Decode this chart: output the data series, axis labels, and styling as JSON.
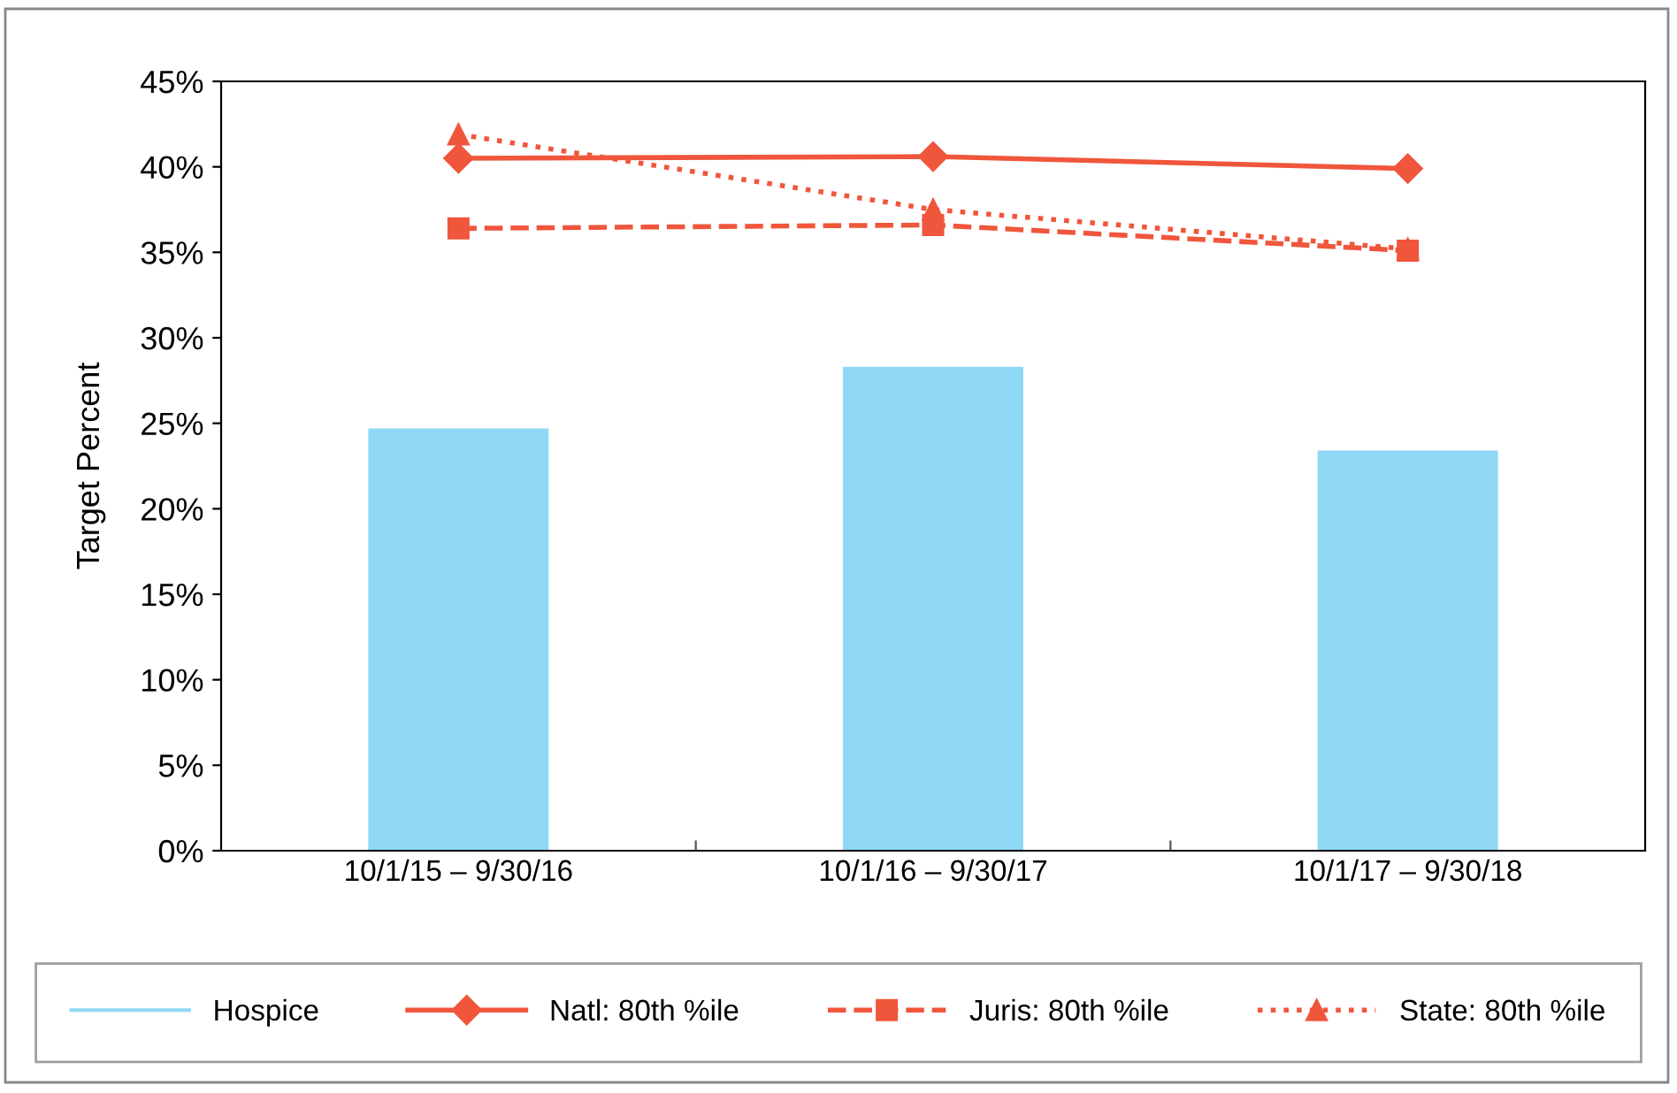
{
  "chart_data": {
    "type": "bar",
    "ylabel": "Target Percent",
    "categories": [
      "10/1/15 – 9/30/16",
      "10/1/16 – 9/30/17",
      "10/1/17 – 9/30/18"
    ],
    "series": [
      {
        "name": "Hospice",
        "color": "#8fd8f5",
        "values": [
          24.7,
          28.3,
          23.4
        ]
      },
      {
        "name": "Natl: 80th %ile",
        "type": "line",
        "color": "#f0563c",
        "marker": "diamond",
        "line_style": "solid",
        "values": [
          40.5,
          40.6,
          39.9
        ]
      },
      {
        "name": "Juris: 80th %ile",
        "type": "line",
        "color": "#f0563c",
        "marker": "square",
        "line_style": "dashed",
        "values": [
          36.4,
          36.6,
          35.1
        ]
      },
      {
        "name": "State: 80th %ile",
        "type": "line",
        "color": "#f0563c",
        "marker": "triangle",
        "line_style": "dotted",
        "values": [
          41.9,
          37.5,
          35.2
        ]
      }
    ],
    "ylim": [
      0,
      45
    ],
    "yticks": [
      {
        "value": 0,
        "label": "0%"
      },
      {
        "value": 5,
        "label": "5%"
      },
      {
        "value": 10,
        "label": "10%"
      },
      {
        "value": 15,
        "label": "15%"
      },
      {
        "value": 20,
        "label": "20%"
      },
      {
        "value": 25,
        "label": "25%"
      },
      {
        "value": 30,
        "label": "30%"
      },
      {
        "value": 35,
        "label": "35%"
      },
      {
        "value": 40,
        "label": "40%"
      },
      {
        "value": 45,
        "label": "45%"
      }
    ],
    "grid": false,
    "legend": "bottom"
  }
}
